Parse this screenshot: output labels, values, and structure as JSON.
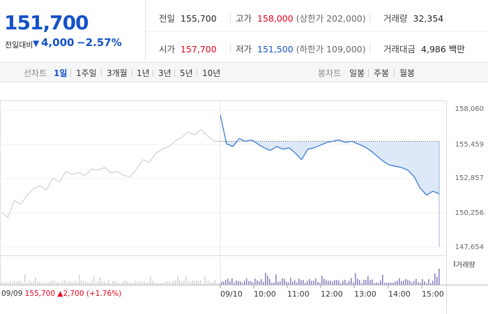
{
  "quote": {
    "price": "151,700",
    "change_label": "전일대비",
    "change_arrow": "▼",
    "change_value": "4,000",
    "change_pct": "−2.57%"
  },
  "stats": {
    "prev_close": {
      "label": "전일",
      "value": "155,700"
    },
    "high": {
      "label": "고가",
      "value": "158,000",
      "sub": "(상한가 202,000)"
    },
    "volume": {
      "label": "거래량",
      "value": "32,354"
    },
    "open": {
      "label": "시가",
      "value": "157,700"
    },
    "low": {
      "label": "저가",
      "value": "151,500",
      "sub": "(하한가 109,000)"
    },
    "amount": {
      "label": "거래대금",
      "value": "4,986 백만"
    }
  },
  "line_tabs": {
    "title": "선차트",
    "items": [
      {
        "label": "1일",
        "active": true
      },
      {
        "label": "1주일",
        "active": false
      },
      {
        "label": "3개월",
        "active": false
      },
      {
        "label": "1년",
        "active": false
      },
      {
        "label": "3년",
        "active": false
      },
      {
        "label": "5년",
        "active": false
      },
      {
        "label": "10년",
        "active": false
      }
    ]
  },
  "candle_tabs": {
    "title": "봉차트",
    "items": [
      {
        "label": "일봉"
      },
      {
        "label": "주봉"
      },
      {
        "label": "월봉"
      }
    ]
  },
  "colors": {
    "up": "#e6001a",
    "down": "#1451c7",
    "prev_day_line": "#c8c8c8",
    "today_line": "#2d6fd0",
    "fill": "#dde9f8",
    "volume": "#8f7fc0"
  },
  "chart_data": {
    "type": "line",
    "y_ticks": [
      "158,060",
      "155,459",
      "152,857",
      "150,256",
      "147,654"
    ],
    "ylim": [
      147654,
      158060
    ],
    "x_ticks": [
      "09/09",
      "09/10",
      "10:00",
      "11:00",
      "12:00",
      "13:00",
      "14:00",
      "15:00"
    ],
    "reference_price": 155700,
    "volume_label": "거래량",
    "prev_day": {
      "label": "09/09",
      "close": "155,700",
      "change_arrow": "▲",
      "change": "2,700",
      "change_pct": "(+1.76%)",
      "values": [
        150300,
        149900,
        151200,
        150900,
        151600,
        152100,
        152300,
        152000,
        152900,
        152600,
        153400,
        153200,
        153300,
        153100,
        153600,
        153500,
        153700,
        153300,
        153400,
        153100,
        153000,
        153600,
        154300,
        154100,
        154800,
        155100,
        155300,
        155700,
        156000,
        156400,
        156200,
        156600,
        156100,
        155700,
        155700
      ]
    },
    "today": {
      "values": [
        157700,
        155500,
        155300,
        155900,
        155700,
        155800,
        155500,
        155200,
        155000,
        155300,
        155100,
        155200,
        154800,
        154300,
        155100,
        155200,
        155400,
        155600,
        155700,
        155800,
        155600,
        155700,
        155500,
        155300,
        155000,
        154600,
        154200,
        153900,
        153800,
        153700,
        153500,
        153000,
        152100,
        151600,
        151900,
        151700
      ]
    }
  }
}
